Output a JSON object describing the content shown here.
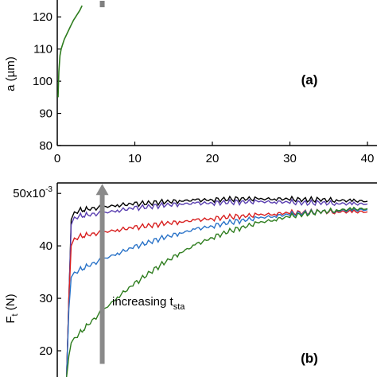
{
  "chart_data": [
    {
      "type": "line",
      "panel_label": "(a)",
      "ylabel": "a (µm)",
      "xlabel": "",
      "xlim": [
        0,
        40
      ],
      "ylim": [
        80,
        125
      ],
      "x_ticks": [
        0,
        10,
        20,
        30,
        40
      ],
      "x_tick_labels": [
        "0",
        "10",
        "20",
        "30",
        "40"
      ],
      "y_ticks": [
        80,
        90,
        100,
        110,
        120
      ],
      "y_tick_labels": [
        "80",
        "90",
        "100",
        "110",
        "120"
      ],
      "grid": false,
      "series": [
        {
          "color": "#2e7d1e",
          "x": [
            0.1,
            0.2,
            0.35,
            0.5,
            0.7,
            0.9,
            1.2,
            1.5,
            1.8,
            2.1,
            2.5,
            2.9,
            3.2
          ],
          "y": [
            95,
            103,
            108,
            110,
            111.5,
            113,
            114.5,
            116,
            117.5,
            119,
            120.5,
            122,
            123.5
          ]
        }
      ],
      "marker": {
        "color": "#808080",
        "x": 5.8,
        "y_range": [
          123,
          125
        ]
      }
    },
    {
      "type": "line",
      "panel_label": "(b)",
      "ylabel": "Ft (N)",
      "ylabel_main": "F",
      "ylabel_sub": "t",
      "ylabel_unit": " (N)",
      "xlabel": "",
      "xlim": [
        0,
        40
      ],
      "ylim": [
        15,
        52
      ],
      "y_ticks": [
        20,
        30,
        40,
        50
      ],
      "y_tick_labels": [
        "20",
        "30",
        "40",
        "50x10⁻³"
      ],
      "y_tick_top_main": "50x10",
      "y_tick_top_exp": "-3",
      "grid": false,
      "annotation": {
        "text_main": "increasing t",
        "text_sub": "sta"
      },
      "arrow": {
        "color": "#8a8a8a",
        "x": 5.8,
        "y_from": 17.5,
        "y_to": 51.5
      },
      "series": [
        {
          "color": "#000000",
          "x": [
            1.2,
            1.5,
            1.8,
            2.2,
            3,
            4,
            6,
            8,
            10,
            12,
            14,
            16,
            18,
            20,
            22,
            24,
            26,
            28,
            30,
            32,
            34,
            36,
            38,
            40
          ],
          "y": [
            15,
            30,
            45,
            46.5,
            46.8,
            47,
            47.4,
            47.8,
            48,
            48.2,
            48.4,
            48.6,
            48.7,
            48.8,
            48.9,
            49,
            48.9,
            49,
            48.9,
            48.8,
            48.8,
            48.7,
            48.6,
            48.5
          ]
        },
        {
          "color": "#5a3fb0",
          "x": [
            1.2,
            1.5,
            1.8,
            2.2,
            3,
            4,
            6,
            8,
            10,
            12,
            14,
            16,
            18,
            20,
            22,
            24,
            26,
            28,
            30,
            32,
            34,
            36,
            38,
            40
          ],
          "y": [
            15,
            30,
            44,
            45.5,
            45.7,
            45.9,
            46.3,
            46.8,
            47.2,
            47.5,
            47.8,
            48,
            48.1,
            48.2,
            48.3,
            48.4,
            48.4,
            48.4,
            48.3,
            48.2,
            48.2,
            48.1,
            48,
            48
          ]
        },
        {
          "color": "#d82020",
          "x": [
            1.2,
            1.5,
            1.8,
            2.2,
            3,
            4,
            6,
            8,
            10,
            12,
            14,
            16,
            18,
            20,
            22,
            24,
            26,
            28,
            30,
            32,
            34,
            36,
            38,
            40
          ],
          "y": [
            15,
            30,
            40,
            41.5,
            41.8,
            42.1,
            42.6,
            43.1,
            43.5,
            43.9,
            44.3,
            44.6,
            44.9,
            45.2,
            45.5,
            45.7,
            45.9,
            46.1,
            46.3,
            46.4,
            46.5,
            46.5,
            46.5,
            46.5
          ]
        },
        {
          "color": "#2a73c8",
          "x": [
            1.2,
            1.5,
            1.8,
            2.2,
            3,
            4,
            6,
            8,
            10,
            12,
            14,
            16,
            18,
            20,
            22,
            24,
            26,
            28,
            30,
            32,
            34,
            36,
            38,
            40
          ],
          "y": [
            15,
            28,
            34,
            35,
            35.5,
            36.2,
            37.5,
            38.7,
            39.8,
            40.8,
            41.7,
            42.5,
            43.2,
            43.8,
            44.4,
            44.9,
            45.3,
            45.7,
            46,
            46.3,
            46.5,
            46.7,
            46.8,
            46.9
          ]
        },
        {
          "color": "#2e7d1e",
          "x": [
            1.2,
            1.5,
            1.8,
            2.2,
            3,
            4,
            6,
            8,
            10,
            12,
            14,
            16,
            18,
            20,
            22,
            24,
            26,
            28,
            30,
            32,
            34,
            36,
            38,
            40
          ],
          "y": [
            15,
            19,
            21.5,
            22.5,
            23.5,
            25,
            27.8,
            30.5,
            32.8,
            35,
            37,
            38.8,
            40.3,
            41.6,
            42.7,
            43.6,
            44.4,
            45,
            45.6,
            46.1,
            46.5,
            46.8,
            47,
            47.1
          ]
        }
      ]
    }
  ]
}
